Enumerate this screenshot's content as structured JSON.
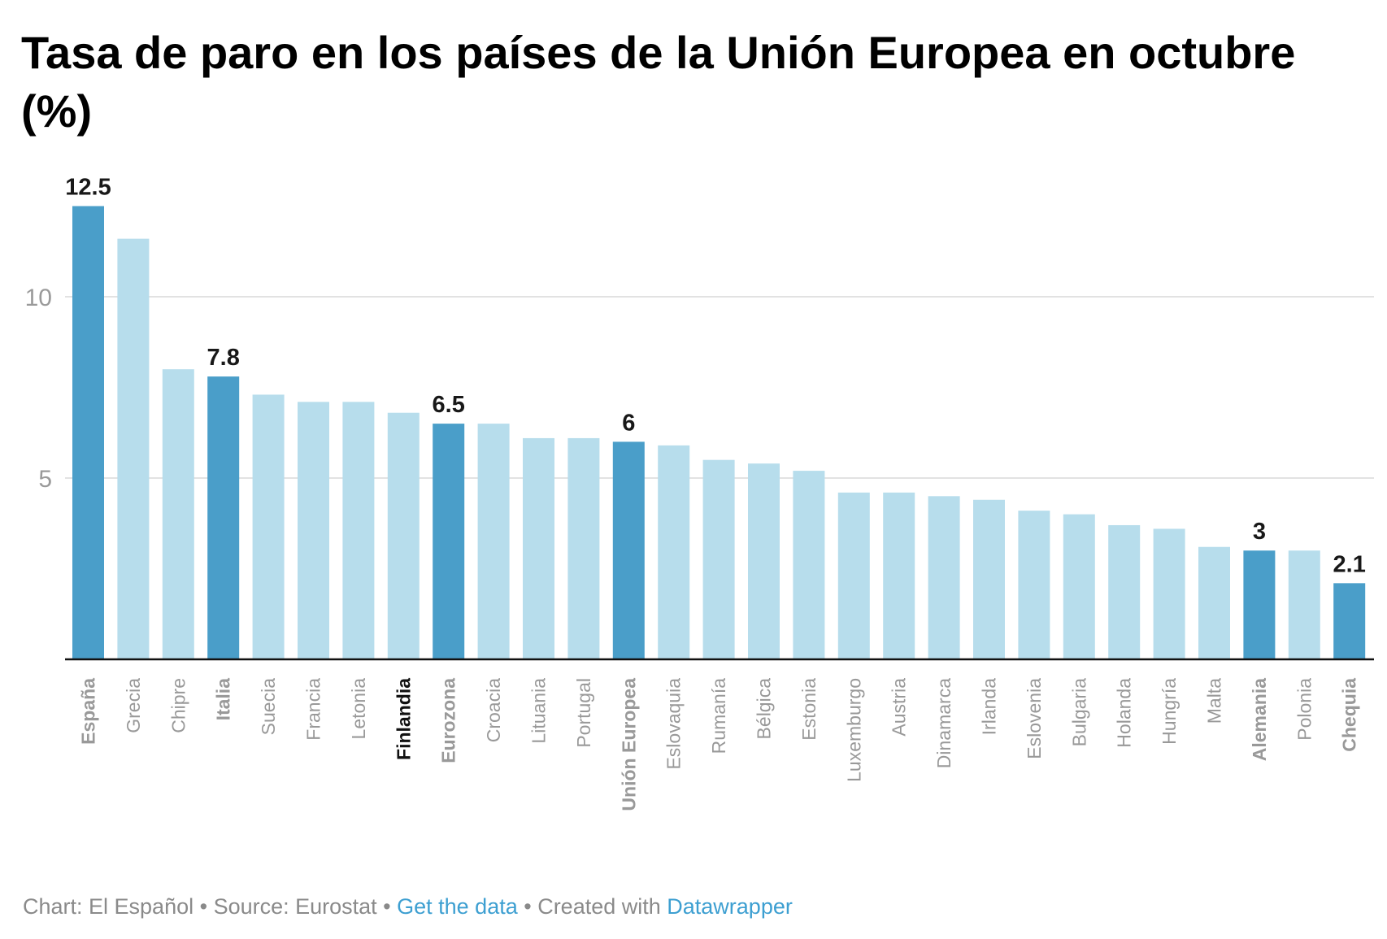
{
  "chart_data": {
    "type": "bar",
    "title_lines": [
      "Tasa de paro en los países de la Unión Europea en octubre",
      "(%)"
    ],
    "xlabel": "",
    "ylabel": "",
    "ylim": [
      0,
      12.5
    ],
    "yticks": [
      5,
      10
    ],
    "grid": true,
    "categories": [
      "España",
      "Grecia",
      "Chipre",
      "Italia",
      "Suecia",
      "Francia",
      "Letonia",
      "Finlandia",
      "Eurozona",
      "Croacia",
      "Lituania",
      "Portugal",
      "Unión Europea",
      "Eslovaquia",
      "Rumanía",
      "Bélgica",
      "Estonia",
      "Luxemburgo",
      "Austria",
      "Dinamarca",
      "Irlanda",
      "Eslovenia",
      "Bulgaria",
      "Holanda",
      "Hungría",
      "Malta",
      "Alemania",
      "Polonia",
      "Chequia"
    ],
    "values": [
      12.5,
      11.6,
      8.0,
      7.8,
      7.3,
      7.1,
      7.1,
      6.8,
      6.5,
      6.5,
      6.1,
      6.1,
      6.0,
      5.9,
      5.5,
      5.4,
      5.2,
      4.6,
      4.6,
      4.5,
      4.4,
      4.1,
      4.0,
      3.7,
      3.6,
      3.1,
      3.0,
      3.0,
      2.1
    ],
    "highlighted": [
      "España",
      "Italia",
      "Eurozona",
      "Unión Europea",
      "Alemania",
      "Chequia"
    ],
    "dark_label": [
      "Finlandia"
    ],
    "value_labels": {
      "España": "12.5",
      "Italia": "7.8",
      "Eurozona": "6.5",
      "Unión Europea": "6",
      "Alemania": "3",
      "Chequia": "2.1"
    },
    "colors": {
      "highlight": "#4a9ec9",
      "normal": "#b7ddec",
      "grid": "#e2e2e2",
      "axis": "#111111"
    }
  },
  "footer": {
    "prefix": "Chart: El Español • Source: Eurostat • ",
    "get_data": "Get the data",
    "middle": " • Created with ",
    "datawrapper": "Datawrapper"
  }
}
